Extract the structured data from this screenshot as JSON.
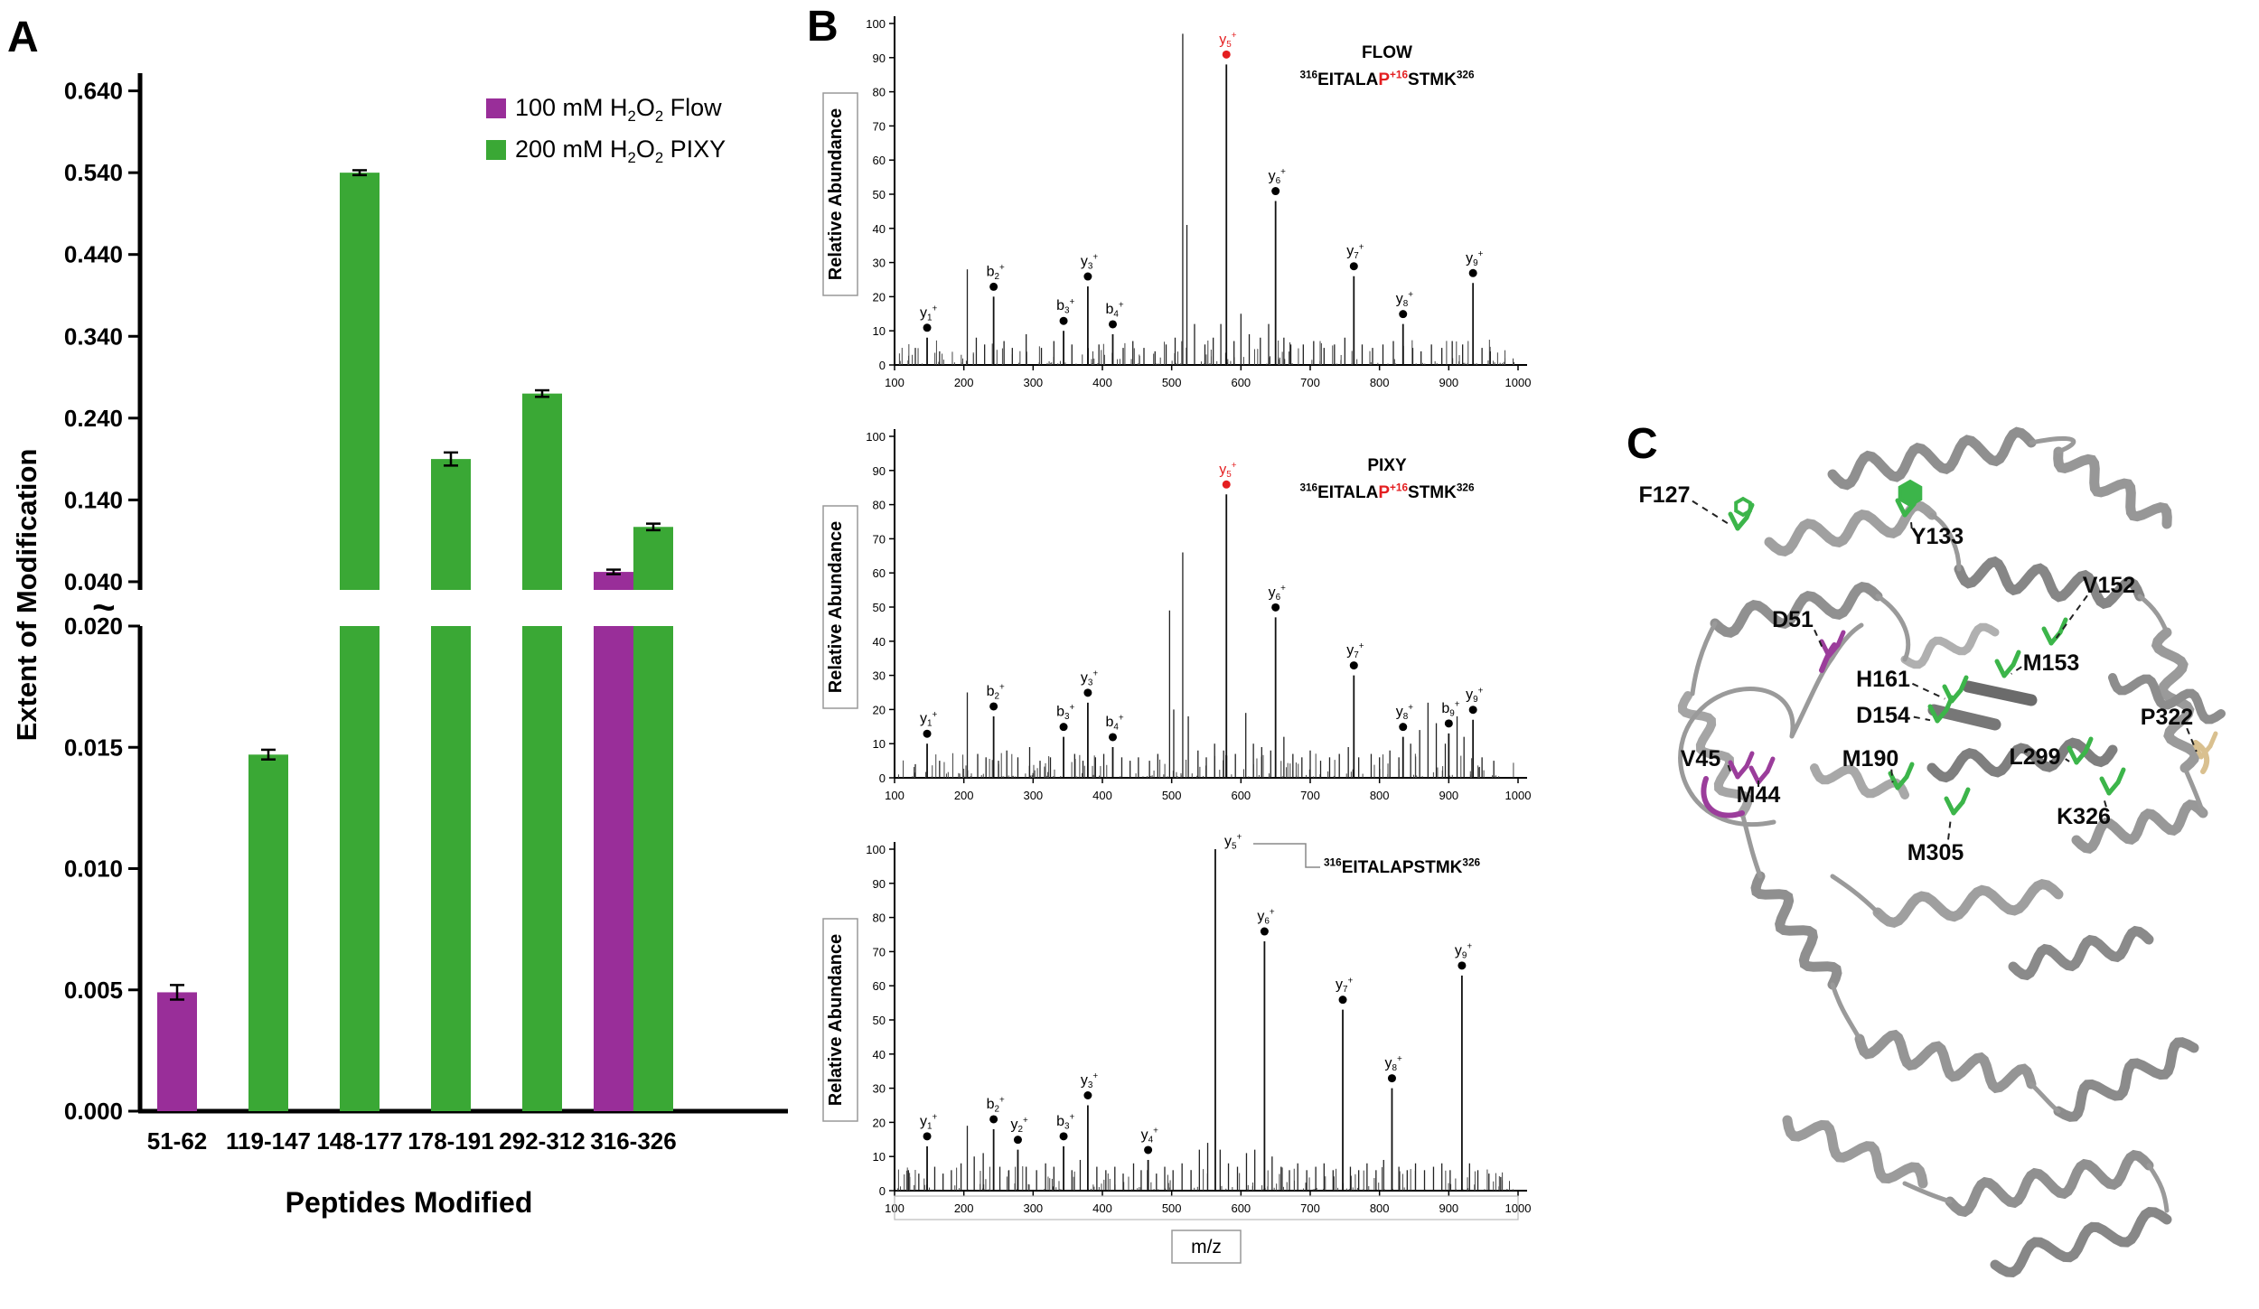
{
  "panels": {
    "a": "A",
    "b": "B",
    "c": "C"
  },
  "colors": {
    "flow": "#992e99",
    "pixy": "#3aa835",
    "red": "#e41e20",
    "tan": "#d9c08f",
    "green": "#3cb54a",
    "purple": "#9b3d9b",
    "protein_gray": "#9a9a9a",
    "axis_black": "#000000"
  },
  "chart_data": [
    {
      "type": "bar",
      "title": "",
      "xlabel": "Peptides Modified",
      "ylabel": "Extent of Modification",
      "categories": [
        "51-62",
        "119-147",
        "148-177",
        "178-191",
        "292-312",
        "316-326"
      ],
      "series": [
        {
          "name": "100 mM H2O2 Flow",
          "legend_runs": [
            {
              "t": "100 mM H"
            },
            {
              "t": "2",
              "sub": true
            },
            {
              "t": "O"
            },
            {
              "t": "2",
              "sub": true
            },
            {
              "t": " Flow"
            }
          ],
          "color_key": "flow",
          "values": [
            0.0049,
            null,
            null,
            null,
            null,
            0.052
          ],
          "errors": [
            0.0003,
            null,
            null,
            null,
            null,
            0.002
          ]
        },
        {
          "name": "200 mM H2O2 PIXY",
          "legend_runs": [
            {
              "t": "200 mM H"
            },
            {
              "t": "2",
              "sub": true
            },
            {
              "t": "O"
            },
            {
              "t": "2",
              "sub": true
            },
            {
              "t": " PIXY"
            }
          ],
          "color_key": "pixy",
          "values": [
            null,
            0.0147,
            0.54,
            0.19,
            0.27,
            0.107
          ],
          "errors": [
            null,
            0.0002,
            0.003,
            0.008,
            0.004,
            0.004
          ]
        }
      ],
      "axis": {
        "break": true,
        "break_symbol": "~",
        "lower_range": [
          0,
          0.02
        ],
        "lower_ticks": [
          "0.000",
          "0.005",
          "0.010",
          "0.015",
          "0.020"
        ],
        "upper_range": [
          0.04,
          0.64
        ],
        "upper_ticks": [
          "0.040",
          "0.140",
          "0.240",
          "0.340",
          "0.440",
          "0.540",
          "0.640"
        ]
      },
      "legend_position": "top-right"
    },
    {
      "type": "bar",
      "subtype": "mass-spectrum",
      "condition": "FLOW",
      "sequence_runs": [
        {
          "t": "316",
          "sup": true
        },
        {
          "t": "EITALA"
        },
        {
          "t": "P",
          "red": true
        },
        {
          "t": "+16",
          "sup": true,
          "red": true
        },
        {
          "t": "STMK"
        },
        {
          "t": "326",
          "sup": true
        }
      ],
      "ylabel": "Relative Abundance",
      "xlim": [
        100,
        1000
      ],
      "ylim": [
        0,
        100
      ],
      "xtick_step": 100,
      "ytick_step": 10,
      "peaks": [
        {
          "ion": "y",
          "num": 1,
          "mz": 147,
          "i": 8
        },
        {
          "ion": "b",
          "num": 2,
          "mz": 243,
          "i": 20
        },
        {
          "ion": "b",
          "num": 3,
          "mz": 344,
          "i": 10
        },
        {
          "ion": "y",
          "num": 3,
          "mz": 379,
          "i": 23
        },
        {
          "ion": "b",
          "num": 4,
          "mz": 415,
          "i": 9
        },
        {
          "ion": "y",
          "num": 5,
          "mz": 579,
          "i": 88,
          "red": true
        },
        {
          "ion": "y",
          "num": 6,
          "mz": 650,
          "i": 48
        },
        {
          "ion": "y",
          "num": 7,
          "mz": 763,
          "i": 26
        },
        {
          "ion": "y",
          "num": 8,
          "mz": 834,
          "i": 12
        },
        {
          "ion": "y",
          "num": 9,
          "mz": 935,
          "i": 24
        }
      ],
      "noise": [
        [
          130,
          5
        ],
        [
          165,
          4
        ],
        [
          205,
          28
        ],
        [
          218,
          8
        ],
        [
          230,
          6
        ],
        [
          258,
          7
        ],
        [
          270,
          5
        ],
        [
          290,
          9
        ],
        [
          312,
          5
        ],
        [
          330,
          7
        ],
        [
          356,
          6
        ],
        [
          395,
          6
        ],
        [
          430,
          5
        ],
        [
          444,
          7
        ],
        [
          460,
          5
        ],
        [
          476,
          4
        ],
        [
          492,
          6
        ],
        [
          505,
          8
        ],
        [
          516,
          97
        ],
        [
          522,
          41
        ],
        [
          533,
          12
        ],
        [
          548,
          6
        ],
        [
          560,
          8
        ],
        [
          571,
          12
        ],
        [
          590,
          7
        ],
        [
          600,
          15
        ],
        [
          612,
          9
        ],
        [
          628,
          8
        ],
        [
          640,
          12
        ],
        [
          662,
          8
        ],
        [
          672,
          6
        ],
        [
          690,
          6
        ],
        [
          705,
          7
        ],
        [
          720,
          5
        ],
        [
          735,
          6
        ],
        [
          750,
          8
        ],
        [
          775,
          6
        ],
        [
          790,
          5
        ],
        [
          805,
          6
        ],
        [
          820,
          7
        ],
        [
          848,
          5
        ],
        [
          860,
          4
        ],
        [
          875,
          6
        ],
        [
          890,
          5
        ],
        [
          905,
          7
        ],
        [
          920,
          6
        ],
        [
          948,
          5
        ],
        [
          960,
          4
        ]
      ]
    },
    {
      "type": "bar",
      "subtype": "mass-spectrum",
      "condition": "PIXY",
      "sequence_runs": [
        {
          "t": "316",
          "sup": true
        },
        {
          "t": "EITALA"
        },
        {
          "t": "P",
          "red": true
        },
        {
          "t": "+16",
          "sup": true,
          "red": true
        },
        {
          "t": "STMK"
        },
        {
          "t": "326",
          "sup": true
        }
      ],
      "ylabel": "Relative Abundance",
      "xlim": [
        100,
        1000
      ],
      "ylim": [
        0,
        100
      ],
      "xtick_step": 100,
      "ytick_step": 10,
      "peaks": [
        {
          "ion": "y",
          "num": 1,
          "mz": 147,
          "i": 10
        },
        {
          "ion": "b",
          "num": 2,
          "mz": 243,
          "i": 18
        },
        {
          "ion": "b",
          "num": 3,
          "mz": 344,
          "i": 12
        },
        {
          "ion": "y",
          "num": 3,
          "mz": 379,
          "i": 22
        },
        {
          "ion": "b",
          "num": 4,
          "mz": 415,
          "i": 9
        },
        {
          "ion": "y",
          "num": 5,
          "mz": 579,
          "i": 83,
          "red": true
        },
        {
          "ion": "y",
          "num": 6,
          "mz": 650,
          "i": 47
        },
        {
          "ion": "y",
          "num": 7,
          "mz": 763,
          "i": 30
        },
        {
          "ion": "y",
          "num": 8,
          "mz": 834,
          "i": 12
        },
        {
          "ion": "b",
          "num": 9,
          "mz": 900,
          "i": 13
        },
        {
          "ion": "y",
          "num": 9,
          "mz": 935,
          "i": 17
        }
      ],
      "noise": [
        [
          130,
          4
        ],
        [
          165,
          5
        ],
        [
          205,
          25
        ],
        [
          220,
          7
        ],
        [
          232,
          6
        ],
        [
          250,
          5
        ],
        [
          262,
          8
        ],
        [
          278,
          6
        ],
        [
          295,
          9
        ],
        [
          310,
          5
        ],
        [
          325,
          6
        ],
        [
          360,
          7
        ],
        [
          372,
          5
        ],
        [
          390,
          6
        ],
        [
          402,
          7
        ],
        [
          428,
          6
        ],
        [
          440,
          5
        ],
        [
          452,
          6
        ],
        [
          468,
          5
        ],
        [
          480,
          7
        ],
        [
          497,
          49
        ],
        [
          503,
          20
        ],
        [
          516,
          66
        ],
        [
          524,
          18
        ],
        [
          538,
          8
        ],
        [
          550,
          6
        ],
        [
          562,
          10
        ],
        [
          575,
          8
        ],
        [
          592,
          7
        ],
        [
          607,
          19
        ],
        [
          618,
          10
        ],
        [
          630,
          9
        ],
        [
          643,
          8
        ],
        [
          662,
          12
        ],
        [
          675,
          7
        ],
        [
          688,
          6
        ],
        [
          700,
          8
        ],
        [
          715,
          5
        ],
        [
          728,
          6
        ],
        [
          742,
          7
        ],
        [
          755,
          9
        ],
        [
          770,
          6
        ],
        [
          788,
          7
        ],
        [
          800,
          6
        ],
        [
          815,
          8
        ],
        [
          828,
          6
        ],
        [
          845,
          10
        ],
        [
          858,
          14
        ],
        [
          870,
          22
        ],
        [
          882,
          16
        ],
        [
          895,
          10
        ],
        [
          912,
          18
        ],
        [
          922,
          12
        ],
        [
          948,
          6
        ],
        [
          965,
          5
        ]
      ]
    },
    {
      "type": "bar",
      "subtype": "mass-spectrum",
      "condition": "",
      "sequence_runs": [
        {
          "t": "316",
          "sup": true
        },
        {
          "t": "EITALAPSTMK"
        },
        {
          "t": "326",
          "sup": true
        }
      ],
      "ylabel": "Relative Abundance",
      "xlabel": "m/z",
      "xlim": [
        100,
        1000
      ],
      "ylim": [
        0,
        100
      ],
      "xtick_step": 100,
      "ytick_step": 10,
      "peaks": [
        {
          "ion": "y",
          "num": 1,
          "mz": 147,
          "i": 13
        },
        {
          "ion": "b",
          "num": 2,
          "mz": 243,
          "i": 18
        },
        {
          "ion": "y",
          "num": 2,
          "mz": 278,
          "i": 12
        },
        {
          "ion": "b",
          "num": 3,
          "mz": 344,
          "i": 13
        },
        {
          "ion": "y",
          "num": 3,
          "mz": 379,
          "i": 25
        },
        {
          "ion": "y",
          "num": 4,
          "mz": 466,
          "i": 9
        },
        {
          "ion": "y",
          "num": 5,
          "mz": 563,
          "i": 100
        },
        {
          "ion": "y",
          "num": 6,
          "mz": 634,
          "i": 73
        },
        {
          "ion": "y",
          "num": 7,
          "mz": 747,
          "i": 53
        },
        {
          "ion": "y",
          "num": 8,
          "mz": 818,
          "i": 30
        },
        {
          "ion": "y",
          "num": 9,
          "mz": 919,
          "i": 63
        }
      ],
      "noise": [
        [
          120,
          6
        ],
        [
          135,
          5
        ],
        [
          158,
          7
        ],
        [
          170,
          5
        ],
        [
          182,
          6
        ],
        [
          196,
          8
        ],
        [
          205,
          19
        ],
        [
          215,
          10
        ],
        [
          228,
          11
        ],
        [
          252,
          7
        ],
        [
          265,
          6
        ],
        [
          290,
          7
        ],
        [
          305,
          6
        ],
        [
          318,
          8
        ],
        [
          330,
          7
        ],
        [
          356,
          6
        ],
        [
          368,
          9
        ],
        [
          392,
          7
        ],
        [
          405,
          6
        ],
        [
          418,
          7
        ],
        [
          430,
          5
        ],
        [
          445,
          8
        ],
        [
          456,
          6
        ],
        [
          478,
          5
        ],
        [
          490,
          7
        ],
        [
          502,
          6
        ],
        [
          515,
          8
        ],
        [
          528,
          6
        ],
        [
          540,
          12
        ],
        [
          552,
          14
        ],
        [
          570,
          12
        ],
        [
          582,
          8
        ],
        [
          595,
          7
        ],
        [
          608,
          11
        ],
        [
          620,
          12
        ],
        [
          645,
          10
        ],
        [
          658,
          7
        ],
        [
          670,
          6
        ],
        [
          682,
          8
        ],
        [
          695,
          6
        ],
        [
          708,
          7
        ],
        [
          720,
          8
        ],
        [
          733,
          6
        ],
        [
          758,
          7
        ],
        [
          770,
          6
        ],
        [
          782,
          8
        ],
        [
          795,
          6
        ],
        [
          806,
          9
        ],
        [
          828,
          7
        ],
        [
          840,
          6
        ],
        [
          852,
          8
        ],
        [
          865,
          6
        ],
        [
          878,
          7
        ],
        [
          890,
          8
        ],
        [
          902,
          6
        ],
        [
          930,
          8
        ],
        [
          942,
          6
        ],
        [
          958,
          5
        ],
        [
          975,
          4
        ]
      ]
    }
  ],
  "protein": {
    "residues": [
      {
        "name": "F127",
        "color": "green",
        "label": [
          64,
          126
        ],
        "stick": [
          145,
          155
        ],
        "ring": 9
      },
      {
        "name": "Y133",
        "color": "green",
        "label": [
          366,
          172
        ],
        "stick": [
          330,
          140
        ],
        "ring": 13,
        "filled": true
      },
      {
        "name": "V152",
        "color": "green",
        "label": [
          556,
          226
        ],
        "stick": [
          492,
          282
        ]
      },
      {
        "name": "D51",
        "color": "purple",
        "label": [
          206,
          264
        ],
        "stick": [
          246,
          296
        ]
      },
      {
        "name": "H161",
        "color": "green",
        "label": [
          306,
          330
        ],
        "stick": [
          382,
          346
        ]
      },
      {
        "name": "M153",
        "color": "green",
        "label": [
          492,
          312
        ],
        "stick": [
          440,
          318
        ]
      },
      {
        "name": "D154",
        "color": "green",
        "label": [
          306,
          370
        ],
        "stick": [
          366,
          368
        ]
      },
      {
        "name": "P322",
        "color": "tan",
        "label": [
          620,
          372
        ],
        "stick": [
          658,
          408
        ]
      },
      {
        "name": "V45",
        "color": "purple",
        "label": [
          104,
          418
        ],
        "stick": [
          145,
          430
        ]
      },
      {
        "name": "M190",
        "color": "green",
        "label": [
          292,
          418
        ],
        "stick": [
          322,
          442
        ]
      },
      {
        "name": "L299",
        "color": "green",
        "label": [
          474,
          416
        ],
        "stick": [
          520,
          414
        ]
      },
      {
        "name": "M44",
        "color": "purple",
        "label": [
          168,
          458
        ],
        "stick": [
          168,
          436
        ]
      },
      {
        "name": "M305",
        "color": "green",
        "label": [
          364,
          522
        ],
        "stick": [
          384,
          470
        ]
      },
      {
        "name": "K326",
        "color": "green",
        "label": [
          528,
          482
        ],
        "stick": [
          556,
          448
        ]
      }
    ]
  }
}
